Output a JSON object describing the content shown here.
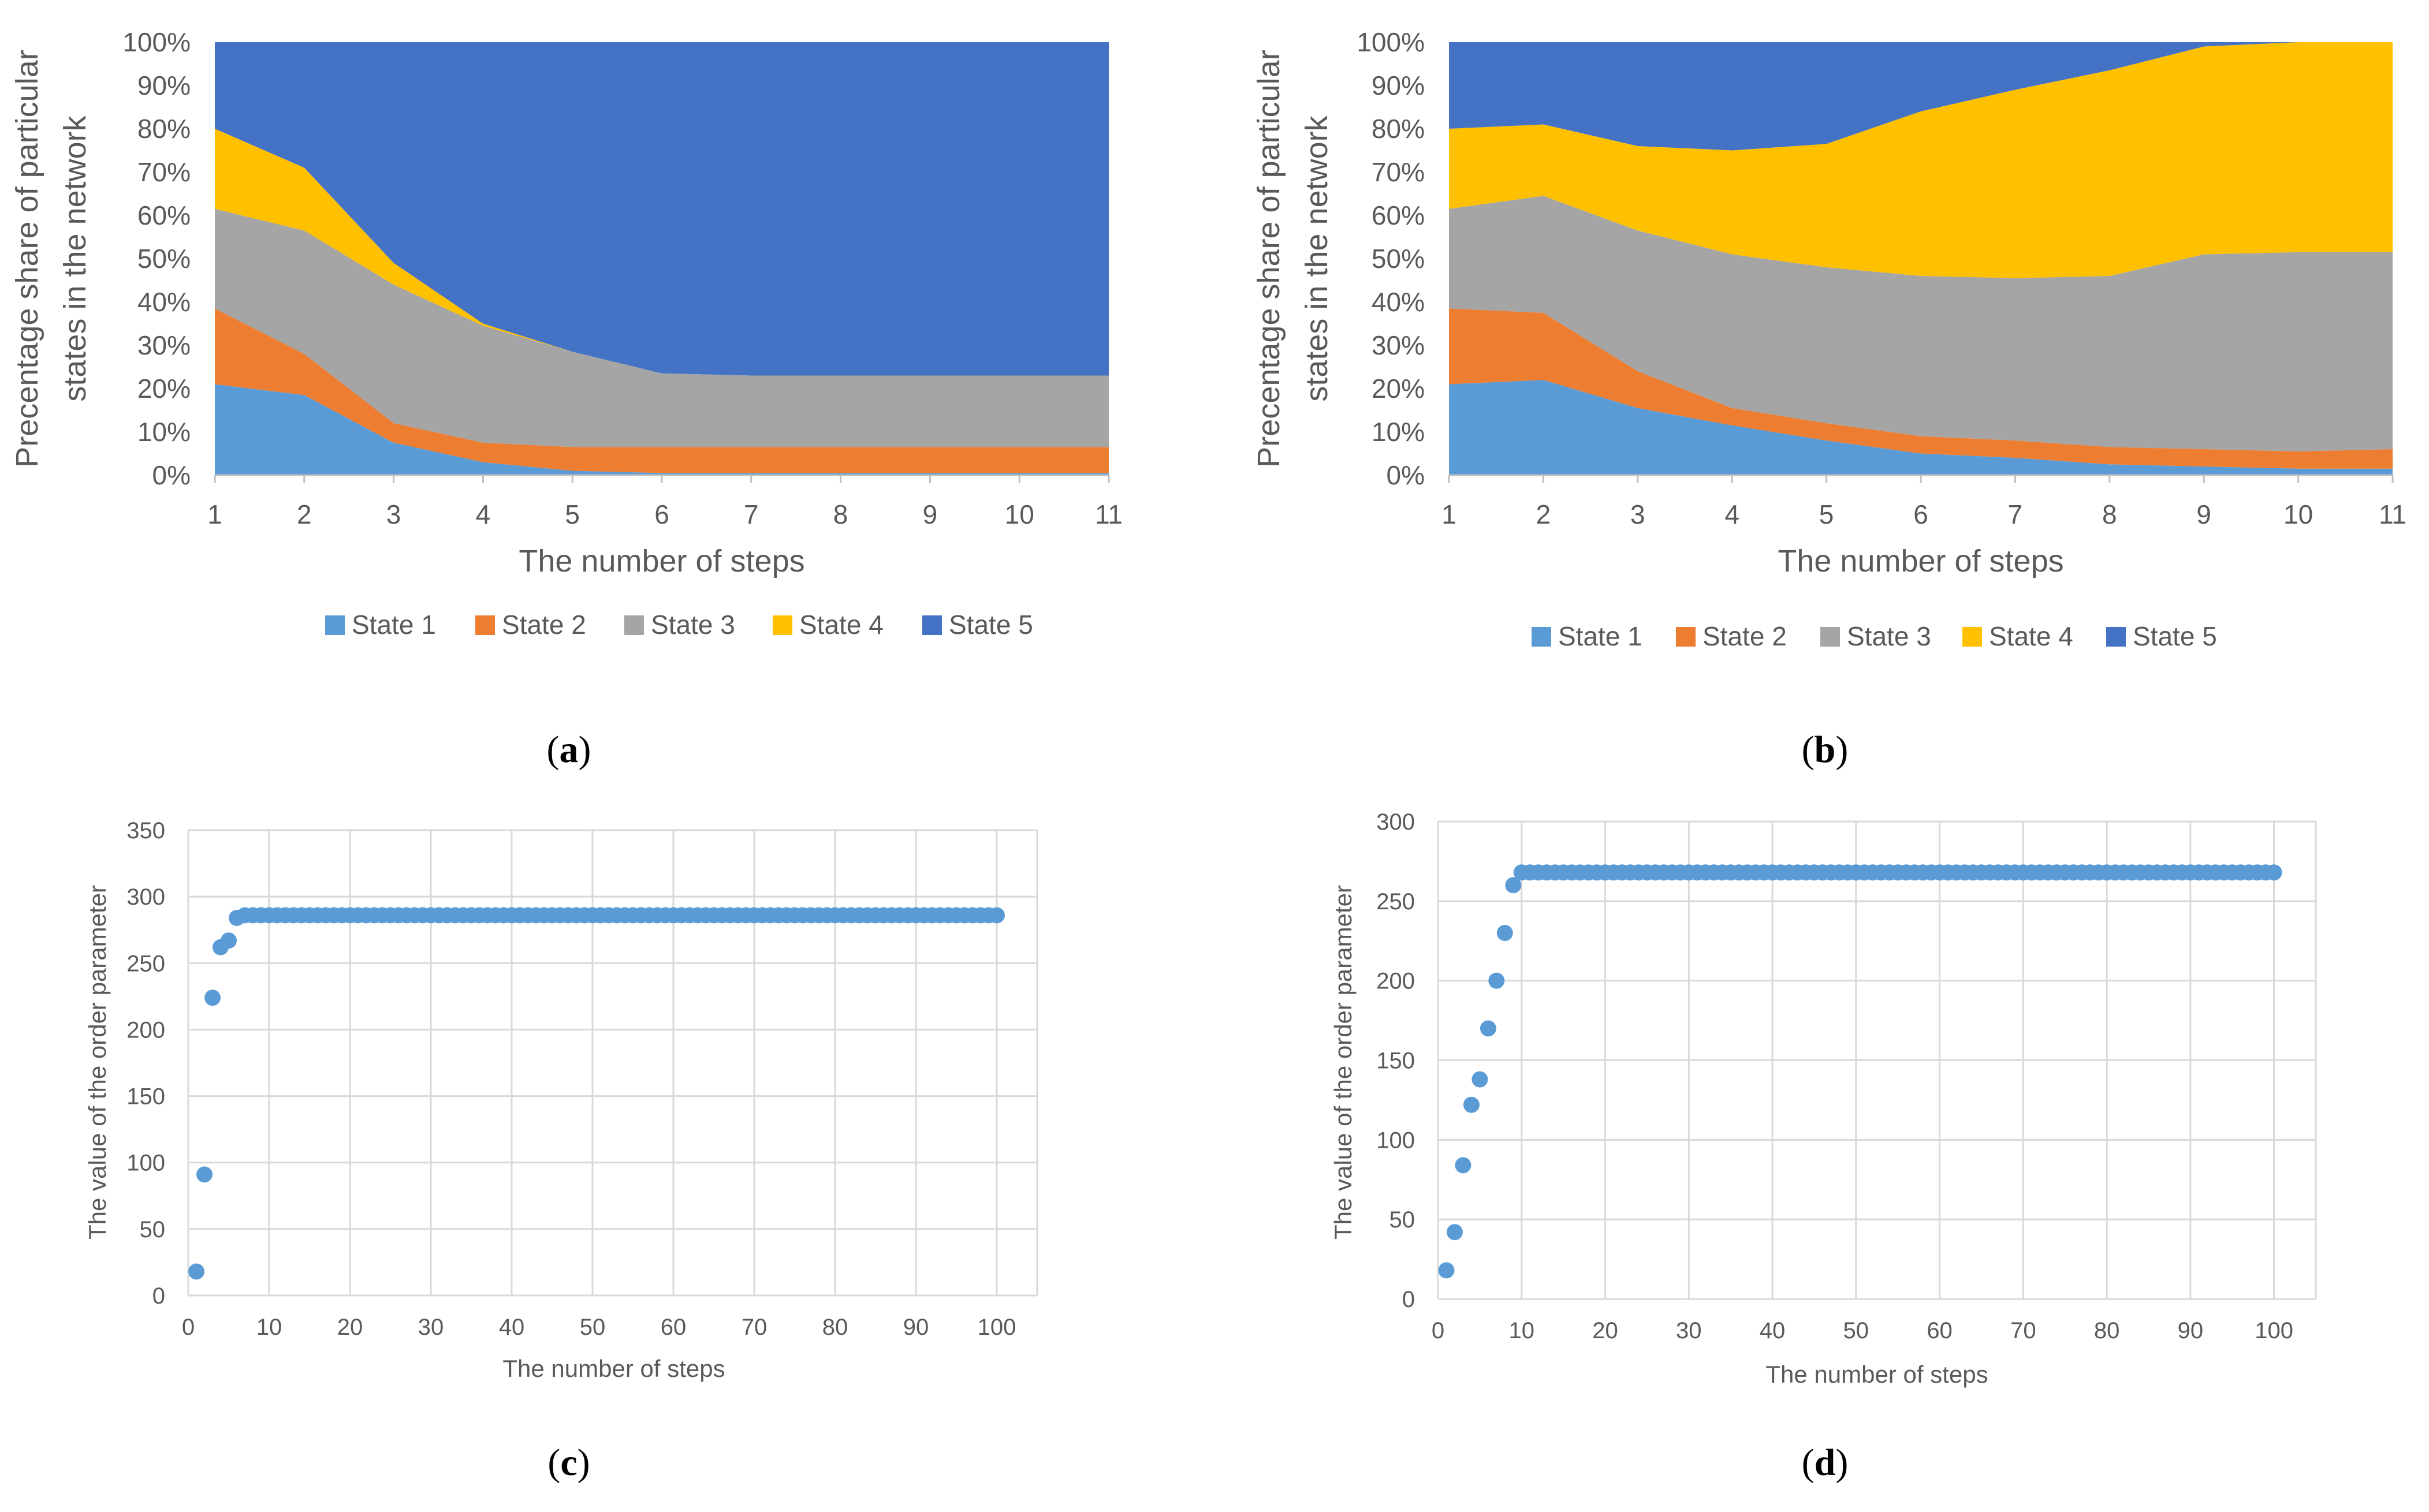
{
  "chart_data": [
    {
      "type": "area",
      "stacked": "percent",
      "panel_label": {
        "open": "(",
        "letter": "a",
        "close": ")"
      },
      "x": [
        1,
        2,
        3,
        4,
        5,
        6,
        7,
        8,
        9,
        10,
        11
      ],
      "x_ticks": [
        "1",
        "2",
        "3",
        "4",
        "5",
        "6",
        "7",
        "8",
        "9",
        "10",
        "11"
      ],
      "y_ticks": [
        "0%",
        "10%",
        "20%",
        "30%",
        "40%",
        "50%",
        "60%",
        "70%",
        "80%",
        "90%",
        "100%"
      ],
      "ylim": [
        0,
        100
      ],
      "xlabel": "The number of steps",
      "ylabel_lines": [
        "Precentage share  of particular",
        "states in the network"
      ],
      "legend_position": "bottom",
      "series": [
        {
          "name": "State 1",
          "color": "#5B9BD5",
          "values": [
            21,
            18.5,
            7.5,
            3,
            1,
            0.5,
            0.5,
            0.5,
            0.5,
            0.5,
            0.5
          ]
        },
        {
          "name": "State 2",
          "color": "#ED7D31",
          "values": [
            17.5,
            9.5,
            4.5,
            4.5,
            5.5,
            6,
            6,
            6,
            6,
            6,
            6
          ]
        },
        {
          "name": "State 3",
          "color": "#A5A5A5",
          "values": [
            23,
            28.5,
            32,
            27,
            22,
            17,
            16.5,
            16.5,
            16.5,
            16.5,
            16.5
          ]
        },
        {
          "name": "State 4",
          "color": "#FFC000",
          "values": [
            18.5,
            14.5,
            5,
            0.5,
            0,
            0,
            0,
            0,
            0,
            0,
            0
          ]
        },
        {
          "name": "State 5",
          "color": "#4472C4",
          "values": [
            20,
            29,
            51,
            65,
            71.5,
            76.5,
            77,
            77,
            77,
            77,
            77
          ]
        }
      ]
    },
    {
      "type": "area",
      "stacked": "percent",
      "panel_label": {
        "open": "(",
        "letter": "b",
        "close": ")"
      },
      "x": [
        1,
        2,
        3,
        4,
        5,
        6,
        7,
        8,
        9,
        10,
        11
      ],
      "x_ticks": [
        "1",
        "2",
        "3",
        "4",
        "5",
        "6",
        "7",
        "8",
        "9",
        "10",
        "11"
      ],
      "y_ticks": [
        "0%",
        "10%",
        "20%",
        "30%",
        "40%",
        "50%",
        "60%",
        "70%",
        "80%",
        "90%",
        "100%"
      ],
      "ylim": [
        0,
        100
      ],
      "xlabel": "The number of steps",
      "ylabel_lines": [
        "Precentage share  of particular",
        "states in the network"
      ],
      "legend_position": "bottom",
      "series": [
        {
          "name": "State 1",
          "color": "#5B9BD5",
          "values": [
            21,
            22,
            15.5,
            11.5,
            8,
            5,
            4,
            2.5,
            2,
            1.5,
            1.5
          ]
        },
        {
          "name": "State 2",
          "color": "#ED7D31",
          "values": [
            17.5,
            15.5,
            8.5,
            4,
            4,
            4,
            4,
            4,
            4,
            4,
            4.5
          ]
        },
        {
          "name": "State 3",
          "color": "#A5A5A5",
          "values": [
            23,
            27,
            32.5,
            35.5,
            36,
            37,
            37.5,
            39.5,
            45,
            46,
            45.5
          ]
        },
        {
          "name": "State 4",
          "color": "#FFC000",
          "values": [
            18.5,
            16.5,
            19.5,
            24,
            28.5,
            38,
            43.5,
            47.5,
            48,
            48.5,
            48.5
          ]
        },
        {
          "name": "State 5",
          "color": "#4472C4",
          "values": [
            20,
            19,
            24,
            25,
            23.5,
            16,
            11,
            6.5,
            1,
            0,
            0
          ]
        }
      ]
    },
    {
      "type": "scatter",
      "panel_label": {
        "open": "(",
        "letter": "c",
        "close": ")"
      },
      "xlim": [
        0,
        105
      ],
      "ylim": [
        0,
        350
      ],
      "x_ticks": [
        0,
        10,
        20,
        30,
        40,
        50,
        60,
        70,
        80,
        90,
        100
      ],
      "y_ticks": [
        0,
        50,
        100,
        150,
        200,
        250,
        300,
        350
      ],
      "xlabel": "The number of steps",
      "ylabel": "The value of the order parameter",
      "grid": true,
      "color": "#5B9BD5",
      "initial_points": [
        [
          1,
          18
        ],
        [
          2,
          91
        ],
        [
          3,
          224
        ],
        [
          4,
          262
        ],
        [
          5,
          267
        ],
        [
          6,
          284
        ]
      ],
      "plateau": {
        "from_x": 7,
        "to_x": 100,
        "y": 286
      }
    },
    {
      "type": "scatter",
      "panel_label": {
        "open": "(",
        "letter": "d",
        "close": ")"
      },
      "xlim": [
        0,
        105
      ],
      "ylim": [
        0,
        300
      ],
      "x_ticks": [
        0,
        10,
        20,
        30,
        40,
        50,
        60,
        70,
        80,
        90,
        100
      ],
      "y_ticks": [
        0,
        50,
        100,
        150,
        200,
        250,
        300
      ],
      "xlabel": "The number of steps",
      "ylabel": "The value of the order parameter",
      "grid": true,
      "color": "#5B9BD5",
      "initial_points": [
        [
          1,
          18
        ],
        [
          2,
          42
        ],
        [
          3,
          84
        ],
        [
          4,
          122
        ],
        [
          5,
          138
        ],
        [
          6,
          170
        ],
        [
          7,
          200
        ],
        [
          8,
          230
        ],
        [
          9,
          260
        ]
      ],
      "plateau": {
        "from_x": 10,
        "to_x": 100,
        "y": 268
      }
    }
  ]
}
